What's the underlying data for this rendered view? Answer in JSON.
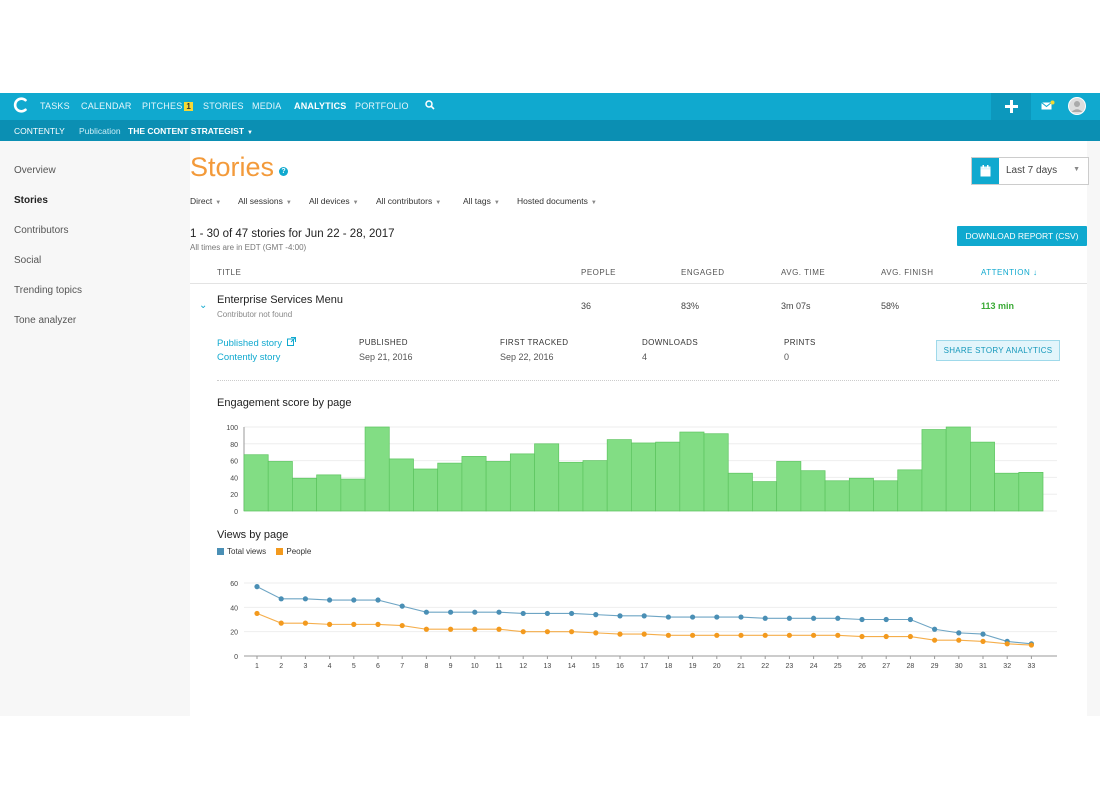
{
  "nav": {
    "items": [
      {
        "label": "TASKS"
      },
      {
        "label": "CALENDAR"
      },
      {
        "label": "PITCHES",
        "badge": "1"
      },
      {
        "label": "STORIES"
      },
      {
        "label": "MEDIA"
      },
      {
        "label": "ANALYTICS",
        "active": true
      },
      {
        "label": "PORTFOLIO"
      }
    ]
  },
  "subbar": {
    "brand": "CONTENTLY",
    "publication_label": "Publication",
    "publication_name": "THE CONTENT STRATEGIST"
  },
  "sidebar": {
    "items": [
      {
        "label": "Overview"
      },
      {
        "label": "Stories",
        "active": true
      },
      {
        "label": "Contributors"
      },
      {
        "label": "Social"
      },
      {
        "label": "Trending topics"
      },
      {
        "label": "Tone analyzer"
      }
    ]
  },
  "page": {
    "title": "Stories",
    "date_range": "Last 7 days",
    "filters": [
      "Direct",
      "All sessions",
      "All devices",
      "All contributors",
      "All tags",
      "Hosted documents"
    ],
    "summary": "1 - 30 of 47 stories for Jun 22 - 28, 2017",
    "timezone": "All times are in EDT (GMT -4:00)",
    "download_label": "DOWNLOAD REPORT (CSV)"
  },
  "table": {
    "headers": [
      "TITLE",
      "PEOPLE",
      "ENGAGED",
      "AVG. TIME",
      "AVG. FINISH",
      "ATTENTION ↓"
    ],
    "row": {
      "title": "Enterprise Services Menu",
      "subtitle": "Contributor not found",
      "people": "36",
      "engaged": "83%",
      "avg_time": "3m 07s",
      "avg_finish": "58%",
      "attention": "113 min"
    },
    "detail": {
      "published_link": "Published story",
      "contently_link": "Contently story",
      "published_label": "PUBLISHED",
      "published_value": "Sep 21, 2016",
      "first_tracked_label": "FIRST TRACKED",
      "first_tracked_value": "Sep 22, 2016",
      "downloads_label": "DOWNLOADS",
      "downloads_value": "4",
      "prints_label": "PRINTS",
      "prints_value": "0",
      "share_label": "SHARE STORY ANALYTICS"
    }
  },
  "colors": {
    "brand": "#10a9cf",
    "title_orange": "#f39a3a",
    "bar_green": "#82dd84",
    "total_views": "#4a8fb5",
    "people": "#f39a1e",
    "attention_green": "#3aaa35"
  },
  "chart_data": [
    {
      "type": "bar",
      "title": "Engagement score by page",
      "categories": [
        "1",
        "2",
        "3",
        "4",
        "5",
        "6",
        "7",
        "8",
        "9",
        "10",
        "11",
        "12",
        "13",
        "14",
        "15",
        "16",
        "17",
        "18",
        "19",
        "20",
        "21",
        "22",
        "23",
        "24",
        "25",
        "26",
        "27",
        "28",
        "29",
        "30",
        "31",
        "32",
        "33"
      ],
      "values": [
        67,
        59,
        39,
        43,
        38,
        100,
        62,
        50,
        57,
        65,
        59,
        68,
        80,
        58,
        60,
        85,
        81,
        82,
        94,
        92,
        45,
        35,
        59,
        48,
        36,
        39,
        36,
        49,
        97,
        100,
        82,
        45,
        46
      ],
      "ylim": [
        0,
        100
      ],
      "yticks": [
        0,
        20,
        40,
        60,
        80,
        100
      ],
      "grid": true
    },
    {
      "type": "line",
      "title": "Views by page",
      "x": [
        "1",
        "2",
        "3",
        "4",
        "5",
        "6",
        "7",
        "8",
        "9",
        "10",
        "11",
        "12",
        "13",
        "14",
        "15",
        "16",
        "17",
        "18",
        "19",
        "20",
        "21",
        "22",
        "23",
        "24",
        "25",
        "26",
        "27",
        "28",
        "29",
        "30",
        "31",
        "32",
        "33"
      ],
      "series": [
        {
          "name": "Total views",
          "values": [
            57,
            47,
            47,
            46,
            46,
            46,
            41,
            36,
            36,
            36,
            36,
            35,
            35,
            35,
            34,
            33,
            33,
            32,
            32,
            32,
            32,
            31,
            31,
            31,
            31,
            30,
            30,
            30,
            22,
            19,
            18,
            12,
            10
          ]
        },
        {
          "name": "People",
          "values": [
            35,
            27,
            27,
            26,
            26,
            26,
            25,
            22,
            22,
            22,
            22,
            20,
            20,
            20,
            19,
            18,
            18,
            17,
            17,
            17,
            17,
            17,
            17,
            17,
            17,
            16,
            16,
            16,
            13,
            13,
            12,
            10,
            9
          ]
        }
      ],
      "ylim": [
        0,
        60
      ],
      "yticks": [
        0,
        20,
        40,
        60
      ],
      "legend": "top-left",
      "grid": true
    }
  ]
}
